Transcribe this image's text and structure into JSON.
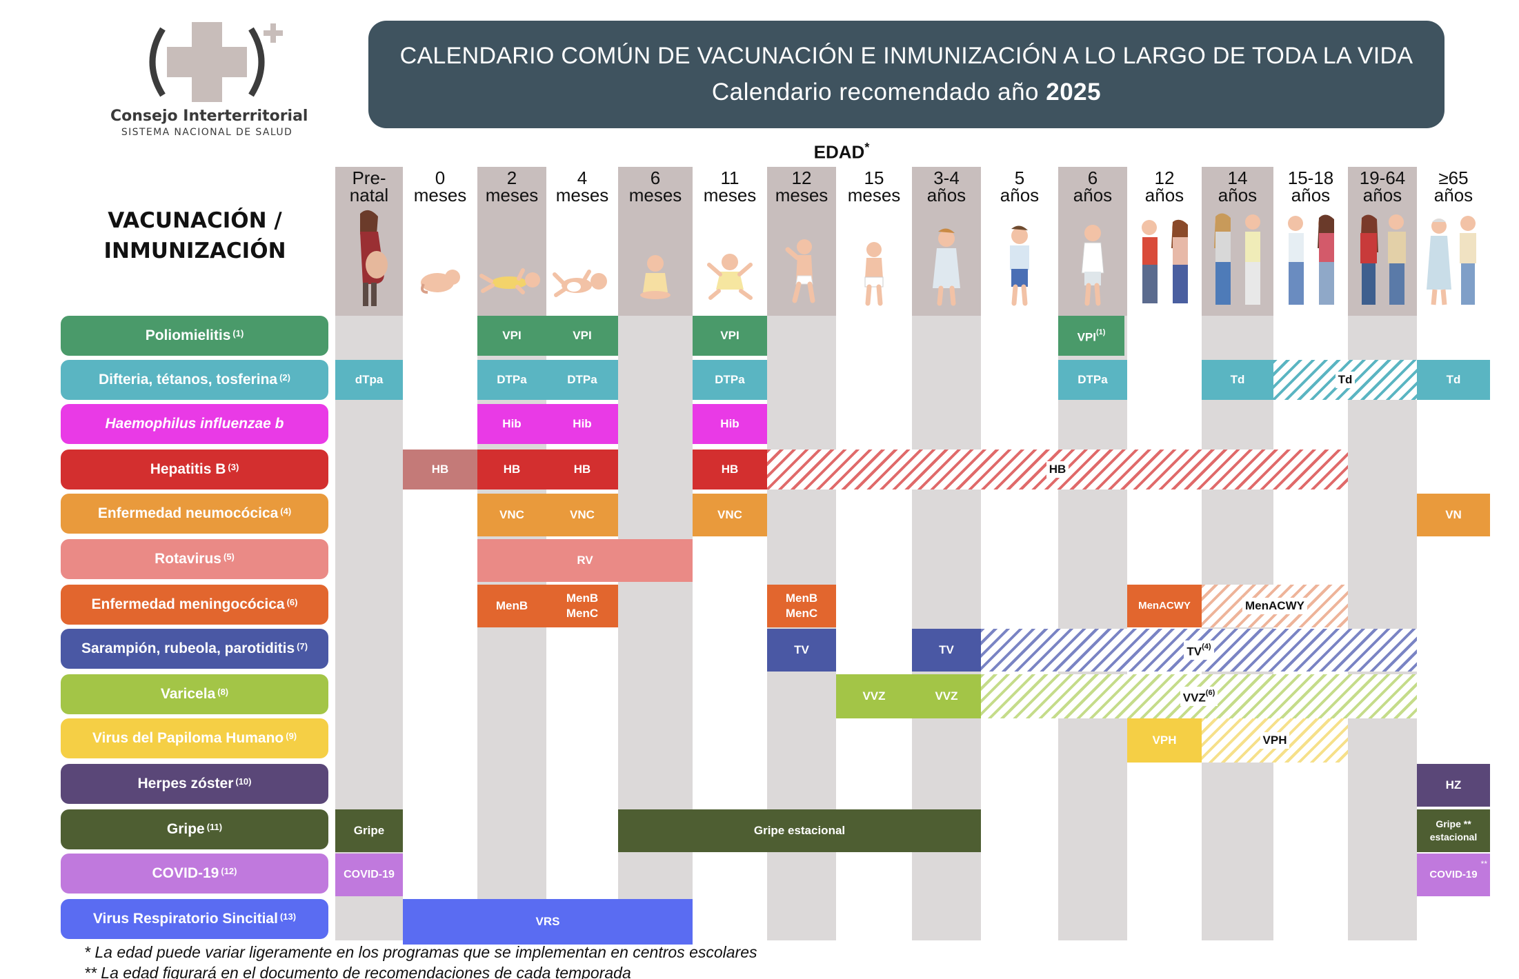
{
  "logo": {
    "name": "Consejo Interterritorial",
    "subtitle": "SISTEMA NACIONAL DE SALUD"
  },
  "banner": {
    "title": "CALENDARIO COMÚN DE VACUNACIÓN E INMUNIZACIÓN A LO LARGO DE TODA LA VIDA",
    "subtitle_prefix": "Calendario recomendado año ",
    "year": "2025"
  },
  "edad": {
    "label": "EDAD",
    "mark": "*"
  },
  "row_header": {
    "line1": "VACUNACIÓN /",
    "line2": "INMUNIZACIÓN"
  },
  "age_columns": [
    {
      "line1": "Pre-",
      "line2": "natal",
      "figure": "pregnant-woman-icon"
    },
    {
      "line1": "0",
      "line2": "meses",
      "figure": "newborn-icon"
    },
    {
      "line1": "2",
      "line2": "meses",
      "figure": "infant-2-months-icon"
    },
    {
      "line1": "4",
      "line2": "meses",
      "figure": "infant-4-months-icon"
    },
    {
      "line1": "6",
      "line2": "meses",
      "figure": "sitting-baby-icon"
    },
    {
      "line1": "11",
      "line2": "meses",
      "figure": "baby-11-months-icon"
    },
    {
      "line1": "12",
      "line2": "meses",
      "figure": "toddler-standing-icon"
    },
    {
      "line1": "15",
      "line2": "meses",
      "figure": "toddler-15-months-icon"
    },
    {
      "line1": "3-4",
      "line2": "años",
      "figure": "child-3-4-years-icon"
    },
    {
      "line1": "5",
      "line2": "años",
      "figure": "child-5-years-icon"
    },
    {
      "line1": "6",
      "line2": "años",
      "figure": "child-6-years-icon"
    },
    {
      "line1": "12",
      "line2": "años",
      "figure": "preteens-pair-icon"
    },
    {
      "line1": "14",
      "line2": "años",
      "figure": "teens-pair-icon"
    },
    {
      "line1": "15-18",
      "line2": "años",
      "figure": "adolescents-pair-icon"
    },
    {
      "line1": "19-64",
      "line2": "años",
      "figure": "adults-pair-icon"
    },
    {
      "line1": "≥65",
      "line2": "años",
      "figure": "elderly-pair-icon"
    }
  ],
  "vaccines": [
    {
      "label": "Poliomielitis",
      "note": "(1)",
      "italic": false,
      "color": "#4a9a6a"
    },
    {
      "label": "Difteria, tétanos, tosferina",
      "note": "(2)",
      "italic": false,
      "color": "#5ab5c2"
    },
    {
      "label": "Haemophilus influenzae b",
      "note": "",
      "italic": true,
      "color": "#e93ae6"
    },
    {
      "label": "Hepatitis B",
      "note": "(3)",
      "italic": false,
      "color": "#d32f2f"
    },
    {
      "label": "Enfermedad neumocócica",
      "note": "(4)",
      "italic": false,
      "color": "#e99a3c"
    },
    {
      "label": "Rotavirus",
      "note": "(5)",
      "italic": false,
      "color": "#ea8a86"
    },
    {
      "label": "Enfermedad meningocócica",
      "note": "(6)",
      "italic": false,
      "color": "#e2662e"
    },
    {
      "label": "Sarampión, rubeola, parotiditis",
      "note": "(7)",
      "italic": false,
      "color": "#4a58a4"
    },
    {
      "label": "Varicela",
      "note": "(8)",
      "italic": false,
      "color": "#a3c547"
    },
    {
      "label": "Virus del Papiloma Humano",
      "note": "(9)",
      "italic": false,
      "color": "#f5cf45"
    },
    {
      "label": "Herpes zóster",
      "note": "(10)",
      "italic": false,
      "color": "#5a4778"
    },
    {
      "label": "Gripe",
      "note": "(11)",
      "italic": false,
      "color": "#4e5e32"
    },
    {
      "label": "COVID-19",
      "note": "(12)",
      "italic": false,
      "color": "#c079dd"
    },
    {
      "label": "Virus Respiratorio Sincitial",
      "note": "(13)",
      "italic": false,
      "color": "#5a6cf2"
    }
  ],
  "cells": {
    "vpi": "VPI",
    "vpi_note": "(1)",
    "dtpa_prenatal": "dTpa",
    "dtpa": "DTPa",
    "td": "Td",
    "hib": "Hib",
    "hb": "HB",
    "vnc": "VNC",
    "vn": "VN",
    "rv": "RV",
    "menb": "MenB",
    "menc": "MenC",
    "menacwy": "MenACWY",
    "tv": "TV",
    "tv_note": "(4)",
    "vvz": "VVZ",
    "vvz_note": "(6)",
    "vph": "VPH",
    "hz": "HZ",
    "gripe": "Gripe",
    "gripe_estacional": "Gripe estacional",
    "gripe_elder_line1": "Gripe",
    "gripe_elder_line2": "estacional",
    "double_star": "**",
    "covid": "COVID-19",
    "vrs": "VRS"
  },
  "footnotes": [
    "* La edad puede variar ligeramente en los programas que se implementan en centros escolares",
    "** La edad figurará en el documento de recomendaciones de cada temporada"
  ]
}
